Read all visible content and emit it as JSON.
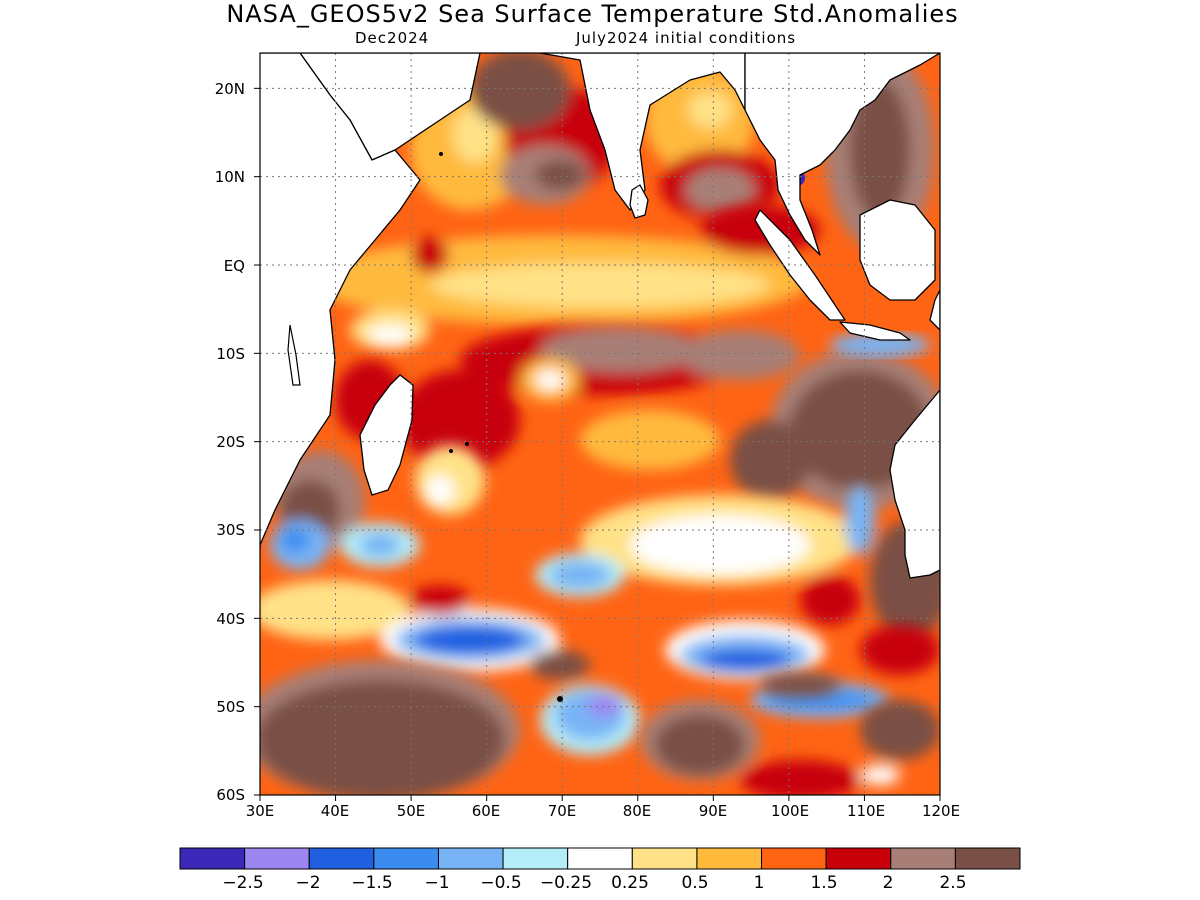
{
  "title": "NASA_GEOS5v2 Sea Surface Temperature Std.Anomalies",
  "subtitle_left": "Dec2024",
  "subtitle_right": "July2024 initial conditions",
  "lat_labels": [
    "20N",
    "10N",
    "EQ",
    "10S",
    "20S",
    "30S",
    "40S",
    "50S",
    "60S"
  ],
  "lon_labels": [
    "30E",
    "40E",
    "50E",
    "60E",
    "70E",
    "80E",
    "90E",
    "100E",
    "110E",
    "120E"
  ],
  "colorbar": {
    "colors": [
      "#3b27b8",
      "#9c86f2",
      "#1f5fe0",
      "#3c8cf0",
      "#78b4f5",
      "#b4ecf8",
      "#ffffff",
      "#ffe287",
      "#ffba3c",
      "#ff6414",
      "#c8000a",
      "#a87f76",
      "#7a4f45"
    ],
    "labels": [
      "-2.5",
      "-2",
      "-1.5",
      "-1",
      "-0.5",
      "-0.25",
      "0.25",
      "0.5",
      "1",
      "1.5",
      "2",
      "2.5"
    ]
  },
  "map": {
    "region": "Indian Ocean",
    "lon_range": [
      30,
      120
    ],
    "lat_range": [
      -60,
      24
    ],
    "grid": true,
    "land_color": "#ffffff",
    "coastline_color": "#000000"
  }
}
